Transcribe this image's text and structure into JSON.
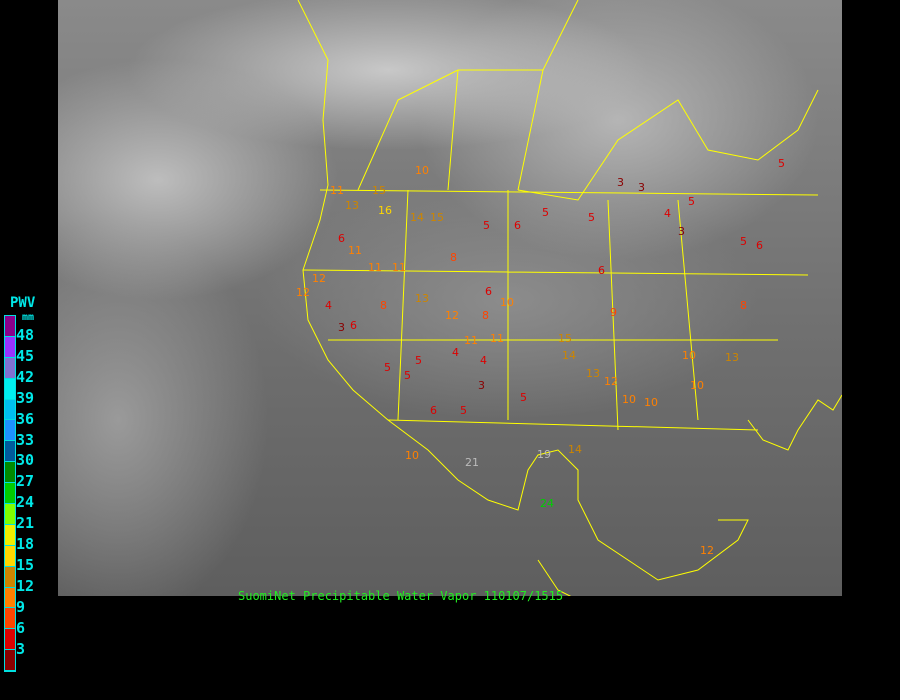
{
  "title": "SuomiNet Precipitable Water Vapor 110107/1515",
  "legend": {
    "title": "PWV",
    "unit": "mm",
    "ticks": [
      "48",
      "45",
      "42",
      "39",
      "36",
      "33",
      "30",
      "27",
      "24",
      "21",
      "18",
      "15",
      "12",
      "9",
      "6",
      "3"
    ],
    "colors": [
      "#8b008b",
      "#9933ff",
      "#8070d0",
      "#00eeee",
      "#00bfee",
      "#1e90ff",
      "#005a9c",
      "#008b00",
      "#00cd00",
      "#7fff00",
      "#eeee00",
      "#ffd700",
      "#cd8500",
      "#ff8000",
      "#ff4500",
      "#dd0000",
      "#8b0000"
    ]
  },
  "stations": [
    "10",
    "11",
    "15",
    "13",
    "16",
    "14",
    "15",
    "12",
    "6",
    "11",
    "12",
    "5",
    "6",
    "5",
    "5",
    "3",
    "3",
    "5",
    "4",
    "3",
    "5",
    "6",
    "5",
    "8",
    "6",
    "11",
    "11",
    "13",
    "12",
    "8",
    "8",
    "6",
    "4",
    "3",
    "5",
    "10",
    "11",
    "4",
    "5",
    "4",
    "3",
    "6",
    "5",
    "5",
    "11",
    "15",
    "14",
    "13",
    "10",
    "10",
    "12",
    "10",
    "8",
    "19",
    "14",
    "21",
    "13",
    "24",
    "10",
    "5",
    "6",
    "9",
    "10",
    "12"
  ]
}
